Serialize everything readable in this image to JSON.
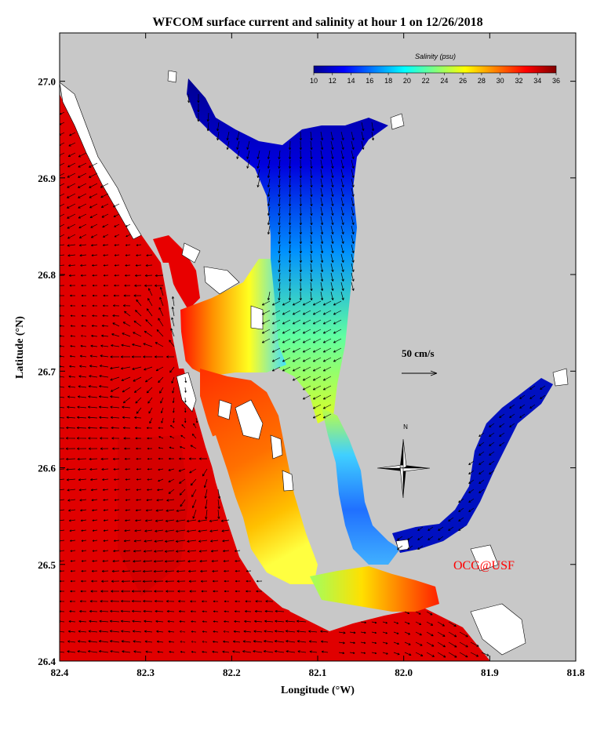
{
  "title": "WFCOM surface current and salinity at hour 1 on 12/26/2018",
  "axes": {
    "xlabel": "Longitude (°W)",
    "ylabel": "Latitude (°N)",
    "x_ticks": [
      "82.4",
      "82.3",
      "82.2",
      "82.1",
      "82.0",
      "81.9",
      "81.8"
    ],
    "y_ticks": [
      "27.0",
      "26.9",
      "26.8",
      "26.7",
      "26.6",
      "26.5",
      "26.4"
    ]
  },
  "colorbar": {
    "title": "Salinity (psu)",
    "labels": [
      "10",
      "12",
      "14",
      "16",
      "18",
      "20",
      "22",
      "24",
      "26",
      "28",
      "30",
      "32",
      "34",
      "36"
    ],
    "min": 10,
    "max": 36,
    "colors": [
      "#00008f",
      "#0000ff",
      "#0080ff",
      "#00ffff",
      "#80ff80",
      "#ffff00",
      "#ff8000",
      "#ff0000",
      "#800000"
    ]
  },
  "scale_vector": {
    "label": "50 cm/s",
    "value": 50
  },
  "north_arrow": {
    "label": "N"
  },
  "credit": "OCG@USF",
  "colors": {
    "land": "#c8c8c8",
    "gulf_salinity": "#e00000",
    "credit": "#ff0000"
  },
  "chart_data": {
    "type": "heatmap",
    "title": "WFCOM surface current and salinity at hour 1 on 12/26/2018",
    "xlabel": "Longitude (°W)",
    "ylabel": "Latitude (°N)",
    "xlim": [
      82.4,
      81.8
    ],
    "ylim": [
      26.4,
      27.05
    ],
    "variable": "Salinity (psu)",
    "value_range": [
      10,
      36
    ],
    "vectors": "surface current",
    "vector_scale_cm_s": 50
  }
}
